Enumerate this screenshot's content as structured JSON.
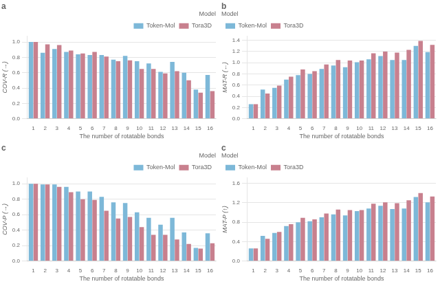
{
  "chart_data": [
    {
      "type": "bar",
      "title": "a",
      "xlabel": "The number of rotatable bonds",
      "ylabel": "COV-R (→)",
      "categories": [
        "1",
        "2",
        "3",
        "4",
        "5",
        "6",
        "7",
        "8",
        "9",
        "10",
        "11",
        "12",
        "13",
        "14",
        "15",
        "16"
      ],
      "series": [
        {
          "name": "Token-Mol",
          "color": "#7db8d8",
          "values": [
            1.0,
            0.86,
            0.91,
            0.87,
            0.84,
            0.83,
            0.83,
            0.77,
            0.82,
            0.75,
            0.72,
            0.61,
            0.74,
            0.6,
            0.38,
            0.57
          ]
        },
        {
          "name": "Tora3D",
          "color": "#c8808e",
          "values": [
            1.0,
            0.97,
            0.96,
            0.89,
            0.85,
            0.87,
            0.81,
            0.75,
            0.76,
            0.65,
            0.65,
            0.59,
            0.62,
            0.5,
            0.34,
            0.36
          ]
        }
      ],
      "ylim": [
        0.0,
        1.08
      ],
      "yticks": [
        {
          "value": 0.0,
          "label": "0.0"
        },
        0.2,
        0.4,
        0.6,
        0.8,
        {
          "value": 1.0,
          "label": "1.0"
        }
      ],
      "grid": true,
      "legend": "upper right",
      "legend_title": "Model"
    },
    {
      "type": "bar",
      "title": "b",
      "xlabel": "The number of rotatable bonds",
      "ylabel": "MAT-R (←)",
      "categories": [
        "1",
        "2",
        "3",
        "4",
        "5",
        "6",
        "7",
        "8",
        "9",
        "10",
        "11",
        "12",
        "13",
        "14",
        "15",
        "16"
      ],
      "series": [
        {
          "name": "Token-Mol",
          "color": "#7db8d8",
          "values": [
            0.26,
            0.52,
            0.55,
            0.7,
            0.78,
            0.8,
            0.89,
            0.95,
            0.92,
            1.01,
            1.06,
            1.12,
            1.05,
            1.05,
            1.3,
            1.19
          ]
        },
        {
          "name": "Tora3D",
          "color": "#c8808e",
          "values": [
            0.26,
            0.45,
            0.59,
            0.75,
            0.88,
            0.85,
            0.97,
            1.05,
            1.04,
            1.04,
            1.17,
            1.2,
            1.18,
            1.23,
            1.39,
            1.32
          ]
        }
      ],
      "ylim": [
        0.0,
        1.48
      ],
      "yticks": [
        {
          "value": 0.0,
          "label": "0.0"
        },
        0.2,
        0.4,
        0.6,
        0.8,
        {
          "value": 1.0,
          "label": "1.0"
        },
        1.2,
        1.4
      ],
      "grid": true,
      "legend": "upper left",
      "legend_title": "Model"
    },
    {
      "type": "bar",
      "title": "c",
      "xlabel": "The number of rotatable bonds",
      "ylabel": "COV-P (→)",
      "categories": [
        "1",
        "2",
        "3",
        "4",
        "5",
        "6",
        "7",
        "8",
        "9",
        "10",
        "11",
        "12",
        "13",
        "14",
        "15",
        "16"
      ],
      "series": [
        {
          "name": "Token-Mol",
          "color": "#7db8d8",
          "values": [
            1.0,
            0.99,
            0.99,
            0.96,
            0.9,
            0.9,
            0.83,
            0.76,
            0.75,
            0.63,
            0.56,
            0.47,
            0.56,
            0.37,
            0.17,
            0.36
          ]
        },
        {
          "name": "Tora3D",
          "color": "#c8808e",
          "values": [
            1.0,
            0.99,
            0.96,
            0.89,
            0.8,
            0.79,
            0.65,
            0.55,
            0.57,
            0.44,
            0.34,
            0.34,
            0.28,
            0.22,
            0.16,
            0.23
          ]
        }
      ],
      "ylim": [
        0.0,
        1.08
      ],
      "yticks": [
        {
          "value": 0.0,
          "label": "0.0"
        },
        0.2,
        0.4,
        0.6,
        0.8,
        {
          "value": 1.0,
          "label": "1.0"
        }
      ],
      "grid": true,
      "legend": "upper right",
      "legend_title": "Model"
    },
    {
      "type": "bar",
      "title": "c",
      "xlabel": "The number of rotatable bonds",
      "ylabel": "MAT-P (↑)",
      "categories": [
        "1",
        "2",
        "3",
        "4",
        "5",
        "6",
        "7",
        "8",
        "9",
        "10",
        "11",
        "12",
        "13",
        "14",
        "15",
        "16"
      ],
      "series": [
        {
          "name": "Token-Mol",
          "color": "#7db8d8",
          "values": [
            0.26,
            0.52,
            0.58,
            0.72,
            0.8,
            0.82,
            0.9,
            0.96,
            0.94,
            1.03,
            1.08,
            1.14,
            1.07,
            1.08,
            1.32,
            1.21
          ]
        },
        {
          "name": "Tora3D",
          "color": "#c8808e",
          "values": [
            0.26,
            0.46,
            0.6,
            0.76,
            0.89,
            0.86,
            0.98,
            1.06,
            1.05,
            1.05,
            1.18,
            1.21,
            1.19,
            1.25,
            1.4,
            1.33
          ]
        }
      ],
      "ylim": [
        0.0,
        1.72
      ],
      "yticks": [
        {
          "value": 0.0,
          "label": "0.0"
        },
        0.4,
        0.8,
        1.2,
        1.6
      ],
      "grid": true,
      "legend": "upper left",
      "legend_title": "Model"
    }
  ]
}
